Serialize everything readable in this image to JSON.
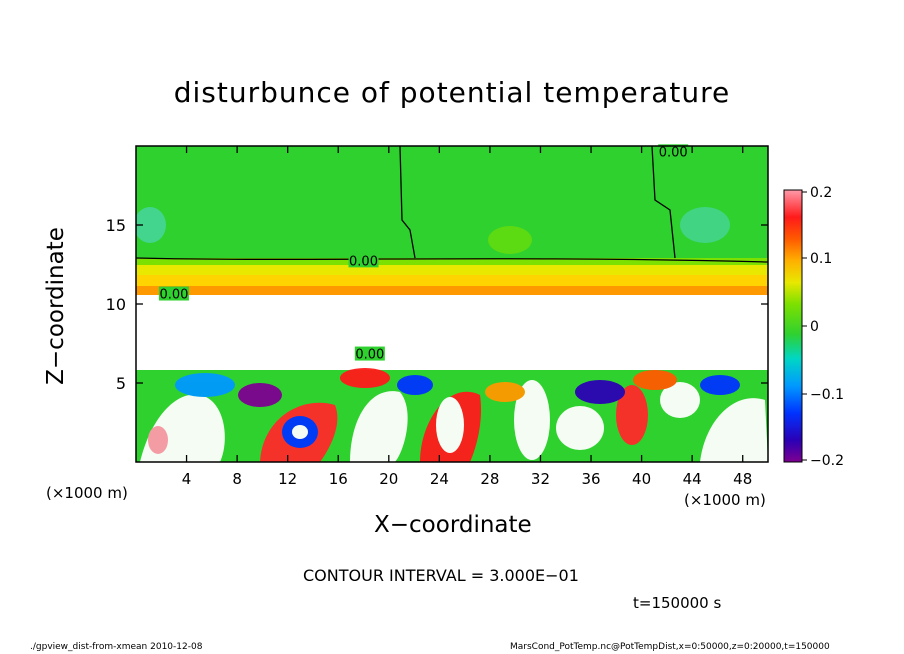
{
  "chart_data": {
    "type": "heatmap",
    "title": "disturbunce of potential temperature",
    "xlabel": "X−coordinate",
    "ylabel": "Z−coordinate",
    "x_unit": "(×1000 m)",
    "y_unit": "(×1000 m)",
    "xlim": [
      0,
      50
    ],
    "ylim": [
      0,
      20
    ],
    "x_ticks": [
      4,
      8,
      12,
      16,
      20,
      24,
      28,
      32,
      36,
      40,
      44,
      48
    ],
    "y_ticks": [
      5,
      10,
      15
    ],
    "colorbar": {
      "range": [
        -0.2,
        0.2
      ],
      "ticks": [
        0.2,
        0.1,
        0,
        -0.1,
        -0.2
      ],
      "tick_labels": [
        "0.2",
        "0.1",
        "0",
        "−0.1",
        "−0.2"
      ]
    },
    "contour_labels": [
      {
        "x": 42.5,
        "z": 19.6,
        "text": "0.00"
      },
      {
        "x": 18.0,
        "z": 12.7,
        "text": "0.00"
      },
      {
        "x": 3.0,
        "z": 10.6,
        "text": "0.00"
      },
      {
        "x": 18.5,
        "z": 6.8,
        "text": "0.00"
      }
    ]
  },
  "contour_interval": "CONTOUR INTERVAL = 3.000E−01",
  "time_label": "t=150000 s",
  "footer_left": "./gpview_dist-from-xmean  2010-12-08",
  "footer_right": "MarsCond_PotTemp.nc@PotTempDist,x=0:50000,z=0:20000,t=150000",
  "colors": {
    "background": "#ffffff",
    "upper_green": "#2fd12f",
    "stable_yellow": "#e8e800",
    "orange": "#ff9900"
  }
}
